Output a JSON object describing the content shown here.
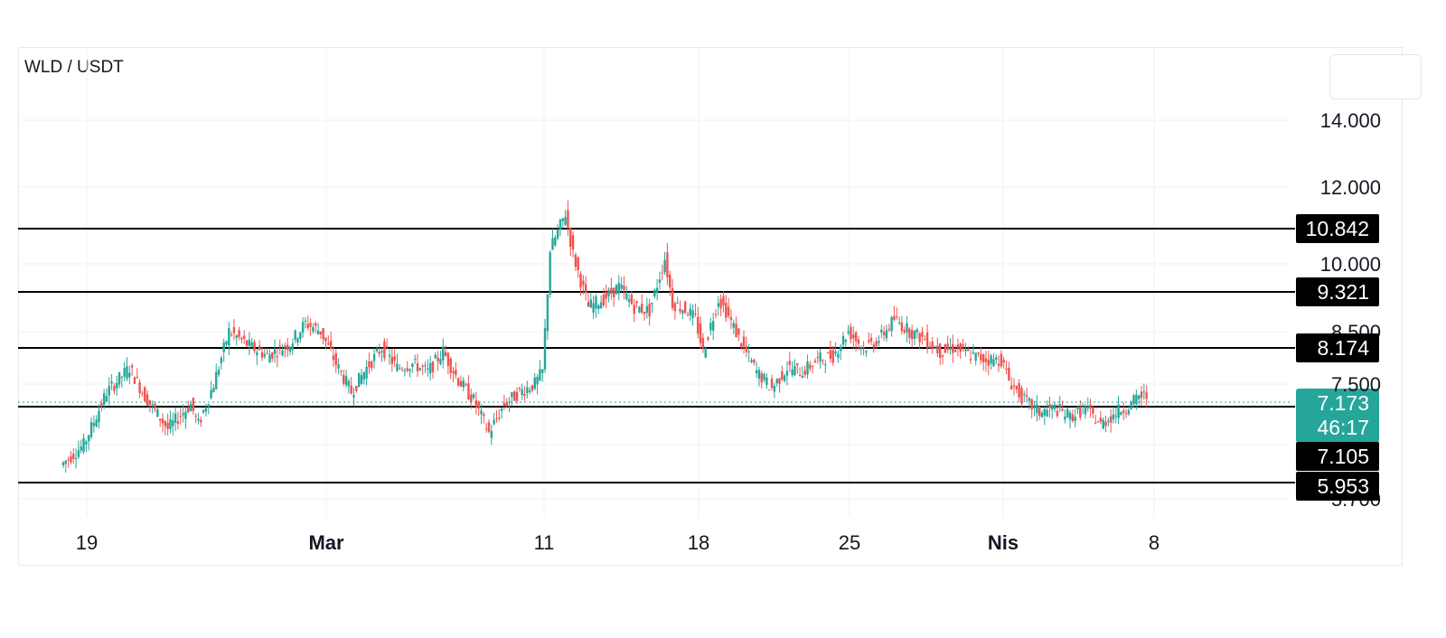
{
  "chart_data": {
    "type": "candlestick",
    "title": "WLD / USDT",
    "ylim": [
      5.5,
      15.4
    ],
    "grid": true,
    "y_ticks": [
      {
        "value": 14.0,
        "label": "14.000"
      },
      {
        "value": 12.0,
        "label": "12.000"
      },
      {
        "value": 10.0,
        "label": "10.000"
      },
      {
        "value": 8.5,
        "label": "8.500"
      },
      {
        "value": 7.5,
        "label": "7.500"
      },
      {
        "value": 5.7,
        "label": "5.700"
      }
    ],
    "x_ticks": [
      {
        "label": "19",
        "bold": false
      },
      {
        "label": "Mar",
        "bold": true
      },
      {
        "label": "11",
        "bold": false
      },
      {
        "label": "18",
        "bold": false
      },
      {
        "label": "25",
        "bold": false
      },
      {
        "label": "Nis",
        "bold": true
      },
      {
        "label": "8",
        "bold": false
      }
    ],
    "levels": [
      {
        "value": 10.842,
        "label": "10.842"
      },
      {
        "value": 9.321,
        "label": "9.321"
      },
      {
        "value": 8.174,
        "label": "8.174"
      },
      {
        "value": 7.105,
        "label": "7.105"
      },
      {
        "value": 5.953,
        "label": "5.953"
      }
    ],
    "current_price": {
      "value": 7.173,
      "label": "7.173",
      "countdown": "46:17"
    },
    "candle_path": [
      [
        0,
        5.5
      ],
      [
        3,
        6.0
      ],
      [
        6,
        7.3
      ],
      [
        9,
        7.9
      ],
      [
        11,
        7.2
      ],
      [
        14,
        6.4
      ],
      [
        17,
        7.0
      ],
      [
        18,
        6.5
      ],
      [
        20,
        7.5
      ],
      [
        22,
        8.8
      ],
      [
        25,
        8.4
      ],
      [
        27,
        8.2
      ],
      [
        30,
        8.5
      ],
      [
        32,
        9.0
      ],
      [
        34,
        8.8
      ],
      [
        36,
        8.0
      ],
      [
        38,
        7.3
      ],
      [
        40,
        7.9
      ],
      [
        42,
        8.4
      ],
      [
        44,
        7.9
      ],
      [
        46,
        8.0
      ],
      [
        48,
        7.8
      ],
      [
        50,
        8.3
      ],
      [
        52,
        7.6
      ],
      [
        54,
        7.1
      ],
      [
        56,
        6.3
      ],
      [
        58,
        7.0
      ],
      [
        60,
        7.3
      ],
      [
        62,
        7.5
      ],
      [
        63,
        7.8
      ],
      [
        64,
        10.8
      ],
      [
        66,
        11.7
      ],
      [
        67,
        10.7
      ],
      [
        69,
        9.4
      ],
      [
        71,
        9.6
      ],
      [
        73,
        9.9
      ],
      [
        75,
        9.4
      ],
      [
        77,
        9.3
      ],
      [
        79,
        10.6
      ],
      [
        80,
        9.5
      ],
      [
        82,
        9.3
      ],
      [
        83,
        9.1
      ],
      [
        84,
        8.3
      ],
      [
        86,
        9.6
      ],
      [
        87,
        9.3
      ],
      [
        89,
        8.5
      ],
      [
        91,
        7.8
      ],
      [
        93,
        7.4
      ],
      [
        95,
        7.9
      ],
      [
        97,
        7.8
      ],
      [
        99,
        8.1
      ],
      [
        101,
        8.2
      ],
      [
        103,
        8.8
      ],
      [
        105,
        8.4
      ],
      [
        107,
        8.6
      ],
      [
        109,
        9.1
      ],
      [
        111,
        8.8
      ],
      [
        113,
        8.6
      ],
      [
        115,
        8.3
      ],
      [
        117,
        8.4
      ],
      [
        119,
        8.2
      ],
      [
        121,
        8.1
      ],
      [
        123,
        8.1
      ],
      [
        124,
        7.6
      ],
      [
        126,
        7.1
      ],
      [
        128,
        6.8
      ],
      [
        130,
        6.9
      ],
      [
        132,
        6.7
      ],
      [
        134,
        6.9
      ],
      [
        136,
        6.5
      ],
      [
        138,
        6.8
      ],
      [
        140,
        7.0
      ],
      [
        141,
        7.2
      ]
    ]
  },
  "page": {
    "title": "WLD / USDT"
  }
}
